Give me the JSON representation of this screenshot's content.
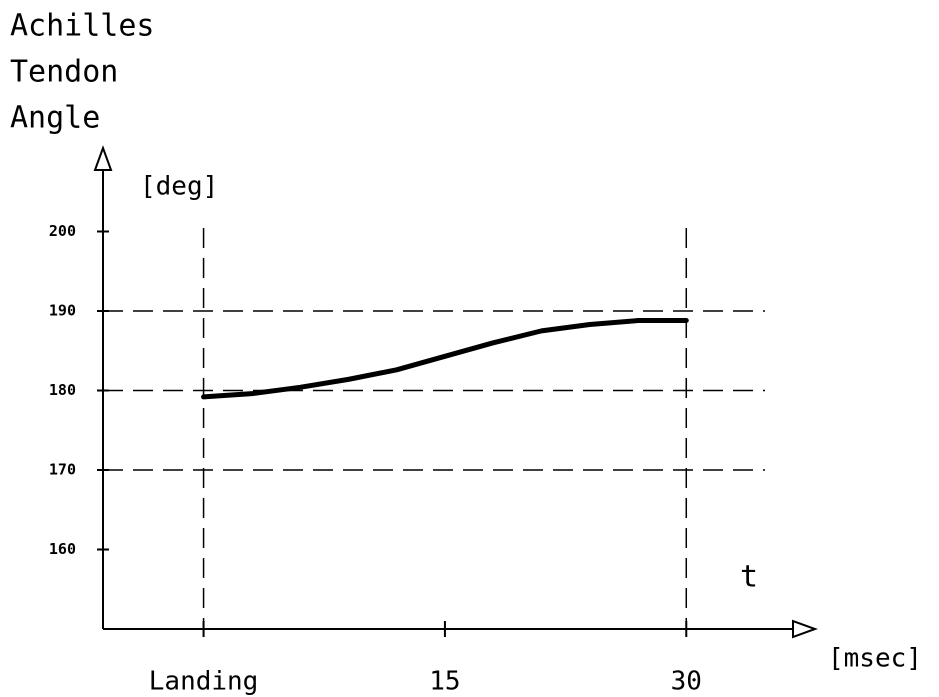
{
  "chart_data": {
    "type": "line",
    "title_lines": [
      "Achilles",
      "Tendon",
      "Angle"
    ],
    "y_label": "[deg]",
    "x_label": "[msec]",
    "x_annotation": "t",
    "x": [
      0,
      3,
      6,
      9,
      12,
      15,
      18,
      21,
      24,
      27,
      30
    ],
    "values": [
      179.2,
      179.6,
      180.4,
      181.4,
      182.6,
      184.3,
      186.0,
      187.5,
      188.3,
      188.8,
      188.8
    ],
    "color": "#000000",
    "xlim": [
      -6.25,
      38
    ],
    "ylim": [
      150,
      210
    ],
    "xticks": [
      {
        "value": 0,
        "label": "Landing"
      },
      15,
      30
    ],
    "yticks": [
      160,
      170,
      180,
      190,
      200
    ],
    "ygrid": [
      170,
      180,
      190
    ],
    "xgrid": [
      0,
      30
    ]
  }
}
